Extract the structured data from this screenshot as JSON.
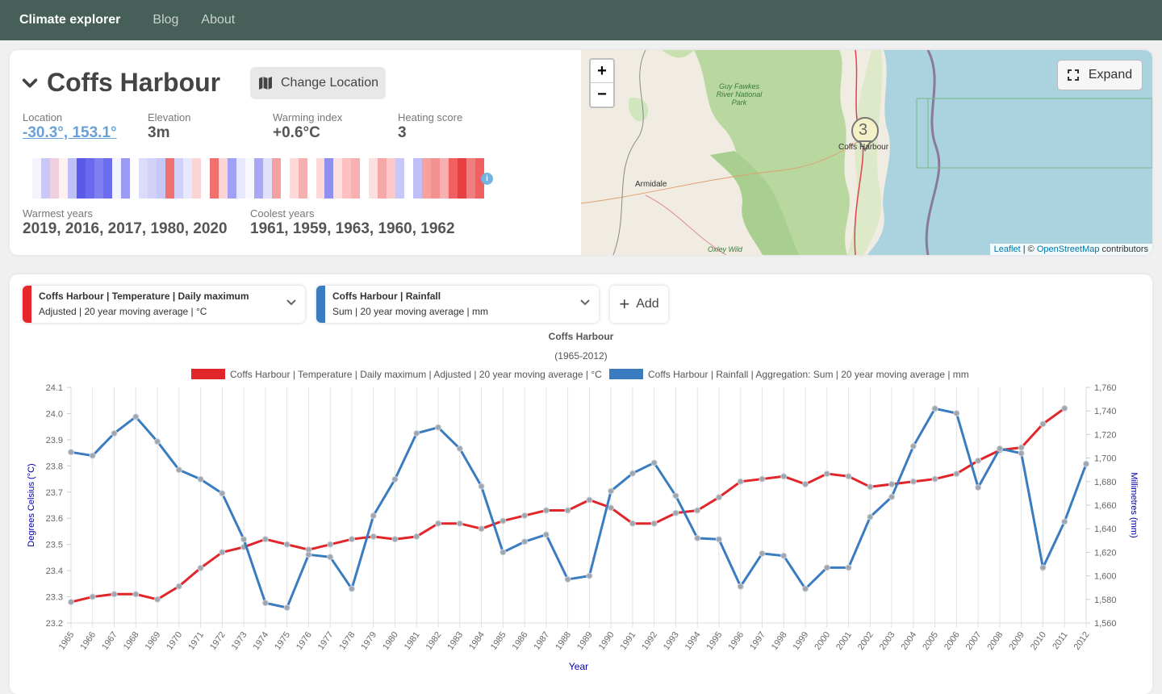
{
  "nav": {
    "brand": "Climate explorer",
    "links": [
      "Blog",
      "About"
    ]
  },
  "location": {
    "title": "Coffs Harbour",
    "change_label": "Change Location",
    "stats": {
      "location_label": "Location",
      "location_value": "-30.3°, 153.1°",
      "elevation_label": "Elevation",
      "elevation_value": "3m",
      "warming_label": "Warming index",
      "warming_value": "+0.6°C",
      "heating_label": "Heating score",
      "heating_value": "3"
    },
    "stripes": [
      "#f4f4ff",
      "#c8c8f8",
      "#f0d0e0",
      "#fff0f0",
      "#c0c0f8",
      "#5a5ae8",
      "#6a6aee",
      "#8080f0",
      "#6c6cee",
      "#f4f4ff",
      "#9a9af4",
      "#ffffff",
      "#dcdcfa",
      "#d0d0f8",
      "#c8c8f8",
      "#f07070",
      "#d0d0f8",
      "#e8e8fc",
      "#fbd4d4",
      "#ffffff",
      "#f07070",
      "#fbd4d4",
      "#a0a0f4",
      "#e8e8fc",
      "#f8f8ff",
      "#a8a8f4",
      "#e0e0fa",
      "#f5a0a0",
      "#ffffff",
      "#ffd8d8",
      "#f5b0b0",
      "#ffffff",
      "#ffd8d8",
      "#9090f0",
      "#fbe0e0",
      "#ffc0c0",
      "#f8b0b0",
      "#ffffff",
      "#fce0e0",
      "#f5a8a8",
      "#fcc8c8",
      "#c8c8f8",
      "#ffffff",
      "#c0c0f8",
      "#f7a0a0",
      "#f39090",
      "#f7b0b0",
      "#f06060",
      "#e84040",
      "#f08080",
      "#f06060"
    ],
    "warmest_label": "Warmest years",
    "warmest_value": "2019, 2016, 2017, 1980, 2020",
    "coolest_label": "Coolest years",
    "coolest_value": "1961, 1959, 1963, 1960, 1962",
    "info_icon": "i"
  },
  "map": {
    "zoom_in": "+",
    "zoom_out": "−",
    "expand_label": "Expand",
    "attrib_leaflet": "Leaflet",
    "attrib_sep": " | © ",
    "attrib_osm": "OpenStreetMap",
    "attrib_tail": " contributors",
    "labels": {
      "city": "Coffs Harbour",
      "armidale": "Armidale",
      "park": "Guy Fawkes River National Park",
      "oxley": "Oxley Wild"
    },
    "marker_value": "3"
  },
  "series": [
    {
      "title": "Coffs Harbour | Temperature | Daily maximum",
      "sub": "Adjusted | 20 year moving average | °C",
      "color": "#e8262a"
    },
    {
      "title": "Coffs Harbour | Rainfall",
      "sub": "Sum | 20 year moving average | mm",
      "color": "#3a7cbf"
    }
  ],
  "add_label": "Add",
  "chart_data": {
    "type": "line",
    "title": "Coffs Harbour",
    "subtitle": "(1965-2012)",
    "xlabel": "Year",
    "ylabel_left": "Degrees Celsius (°C)",
    "ylabel_right": "Millimetres (mm)",
    "ylim_left": [
      23.2,
      24.1
    ],
    "ylim_right": [
      1560,
      1760
    ],
    "yticks_left": [
      "23.2",
      "23.3",
      "23.4",
      "23.5",
      "23.6",
      "23.7",
      "23.8",
      "23.9",
      "24.0",
      "24.1"
    ],
    "yticks_right": [
      "1,560",
      "1,580",
      "1,600",
      "1,620",
      "1,640",
      "1,660",
      "1,680",
      "1,700",
      "1,720",
      "1,740",
      "1,760"
    ],
    "x": [
      1965,
      1966,
      1967,
      1968,
      1969,
      1970,
      1971,
      1972,
      1973,
      1974,
      1975,
      1976,
      1977,
      1978,
      1979,
      1980,
      1981,
      1982,
      1983,
      1984,
      1985,
      1986,
      1987,
      1988,
      1989,
      1990,
      1991,
      1992,
      1993,
      1994,
      1995,
      1996,
      1997,
      1998,
      1999,
      2000,
      2001,
      2002,
      2003,
      2004,
      2005,
      2006,
      2007,
      2008,
      2009,
      2010,
      2011,
      2012
    ],
    "series": [
      {
        "name": "Coffs Harbour | Temperature | Daily maximum | Adjusted | 20 year moving average | °C",
        "axis": "left",
        "color": "#e0262a",
        "values": [
          23.28,
          23.3,
          23.31,
          23.31,
          23.29,
          23.34,
          23.41,
          23.47,
          23.49,
          23.52,
          23.5,
          23.48,
          23.5,
          23.52,
          23.53,
          23.52,
          23.53,
          23.58,
          23.58,
          23.56,
          23.59,
          23.61,
          23.63,
          23.63,
          23.67,
          23.64,
          23.58,
          23.58,
          23.62,
          23.63,
          23.68,
          23.74,
          23.75,
          23.76,
          23.73,
          23.77,
          23.76,
          23.72,
          23.73,
          23.74,
          23.75,
          23.77,
          23.82,
          23.86,
          23.87,
          23.96,
          24.02,
          null
        ]
      },
      {
        "name": "Coffs Harbour | Rainfall | Aggregation: Sum | 20 year moving average | mm",
        "axis": "right",
        "color": "#3a7cbf",
        "values": [
          1705,
          1702,
          1721,
          1735,
          1714,
          1690,
          1682,
          1670,
          1631,
          1577,
          1573,
          1618,
          1616,
          1589,
          1651,
          1682,
          1721,
          1726,
          1708,
          1676,
          1620,
          1629,
          1635,
          1597,
          1600,
          1672,
          1687,
          1696,
          1668,
          1632,
          1631,
          1591,
          1619,
          1617,
          1589,
          1607,
          1607,
          1650,
          1667,
          1710,
          1742,
          1738,
          1675,
          1708,
          1704,
          1607,
          1646,
          1695
        ]
      }
    ]
  }
}
